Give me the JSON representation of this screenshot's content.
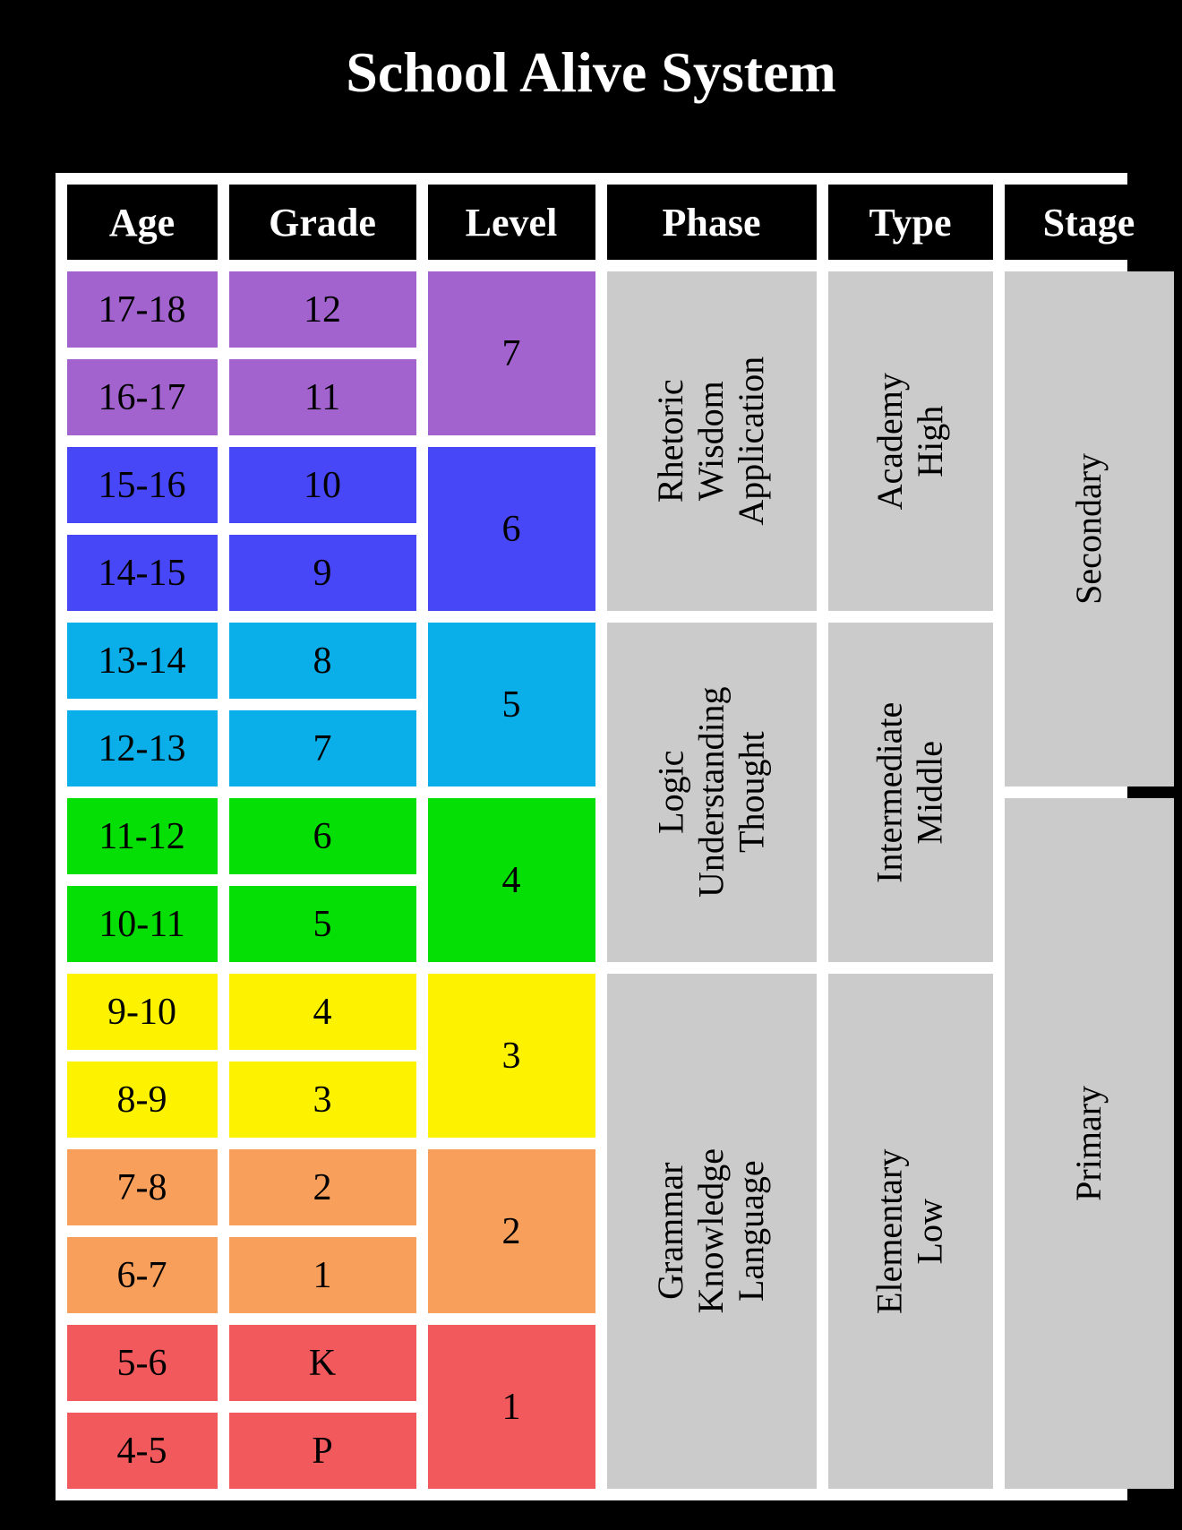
{
  "title": "School Alive System",
  "columns": [
    "Age",
    "Grade",
    "Level",
    "Phase",
    "Type",
    "Stage"
  ],
  "rows": [
    {
      "age": "17-18",
      "grade": "12",
      "band": "purple"
    },
    {
      "age": "16-17",
      "grade": "11",
      "band": "purple"
    },
    {
      "age": "15-16",
      "grade": "10",
      "band": "blue"
    },
    {
      "age": "14-15",
      "grade": "9",
      "band": "blue"
    },
    {
      "age": "13-14",
      "grade": "8",
      "band": "lightblue"
    },
    {
      "age": "12-13",
      "grade": "7",
      "band": "lightblue"
    },
    {
      "age": "11-12",
      "grade": "6",
      "band": "green"
    },
    {
      "age": "10-11",
      "grade": "5",
      "band": "green"
    },
    {
      "age": "9-10",
      "grade": "4",
      "band": "yellow"
    },
    {
      "age": "8-9",
      "grade": "3",
      "band": "yellow"
    },
    {
      "age": "7-8",
      "grade": "2",
      "band": "orange"
    },
    {
      "age": "6-7",
      "grade": "1",
      "band": "orange"
    },
    {
      "age": "5-6",
      "grade": "K",
      "band": "red"
    },
    {
      "age": "4-5",
      "grade": "P",
      "band": "red"
    }
  ],
  "levels": [
    {
      "label": "7",
      "band": "purple"
    },
    {
      "label": "6",
      "band": "blue"
    },
    {
      "label": "5",
      "band": "lightblue"
    },
    {
      "label": "4",
      "band": "green"
    },
    {
      "label": "3",
      "band": "yellow"
    },
    {
      "label": "2",
      "band": "orange"
    },
    {
      "label": "1",
      "band": "red"
    }
  ],
  "phases": [
    {
      "lines": [
        "Rhetoric",
        "Wisdom",
        "Application"
      ],
      "rows": 4
    },
    {
      "lines": [
        "Logic",
        "Understanding",
        "Thought"
      ],
      "rows": 4
    },
    {
      "lines": [
        "Grammar",
        "Knowledge",
        "Language"
      ],
      "rows": 6
    }
  ],
  "types": [
    {
      "lines": [
        "Academy",
        "High"
      ],
      "rows": 4
    },
    {
      "lines": [
        "Intermediate",
        "Middle"
      ],
      "rows": 4
    },
    {
      "lines": [
        "Elementary",
        "Low"
      ],
      "rows": 6
    }
  ],
  "stages": [
    {
      "label": "Secondary",
      "rows": 6
    },
    {
      "label": "Primary",
      "rows": 8
    }
  ],
  "colors": {
    "page_bg": "#000000",
    "table_bg": "#ffffff",
    "title_text": "#ffffff",
    "header_bg": "#000000",
    "header_text": "#ffffff",
    "cell_text": "#000000",
    "gray": "#cbcbcb",
    "purple": "#a263cf",
    "blue": "#4847f8",
    "lightblue": "#0aaee8",
    "green": "#05df05",
    "yellow": "#fdf300",
    "orange": "#f89f5b",
    "red": "#f2595c"
  }
}
